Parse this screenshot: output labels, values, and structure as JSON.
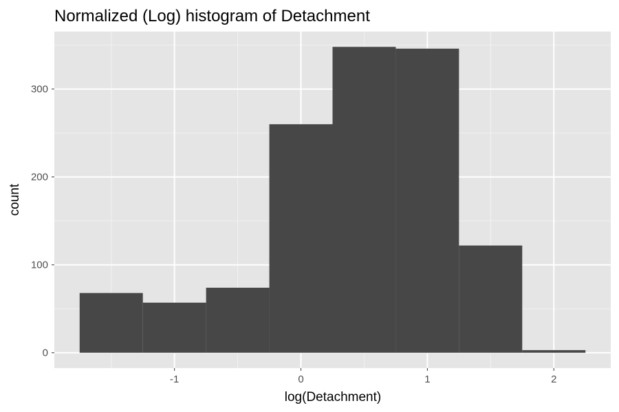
{
  "chart_data": {
    "type": "bar",
    "title": "Normalized (Log) histogram of Detachment",
    "xlabel": "log(Detachment)",
    "ylabel": "count",
    "bin_width": 0.5,
    "bins": [
      {
        "x0": -1.75,
        "x1": -1.25,
        "count": 68
      },
      {
        "x0": -1.25,
        "x1": -0.75,
        "count": 57
      },
      {
        "x0": -0.75,
        "x1": -0.25,
        "count": 74
      },
      {
        "x0": -0.25,
        "x1": 0.25,
        "count": 260
      },
      {
        "x0": 0.25,
        "x1": 0.75,
        "count": 348
      },
      {
        "x0": 0.75,
        "x1": 1.25,
        "count": 346
      },
      {
        "x0": 1.25,
        "x1": 1.75,
        "count": 122
      },
      {
        "x0": 1.75,
        "x1": 2.25,
        "count": 3
      }
    ],
    "xlim": [
      -1.95,
      2.45
    ],
    "ylim": [
      -17.4,
      365.4
    ],
    "x_ticks": [
      -1,
      0,
      1,
      2
    ],
    "x_tick_labels": [
      "-1",
      "0",
      "1",
      "2"
    ],
    "y_ticks": [
      0,
      100,
      200,
      300
    ],
    "y_tick_labels": [
      "0",
      "100",
      "200",
      "300"
    ],
    "grid": true,
    "legend": "none",
    "colors": {
      "bar": "#474747",
      "panel": "#e5e5e5",
      "grid_major": "#ffffff",
      "grid_minor": "#f2f2f2",
      "tick_text": "#4d4d4d",
      "tick_mark": "#333333"
    }
  }
}
